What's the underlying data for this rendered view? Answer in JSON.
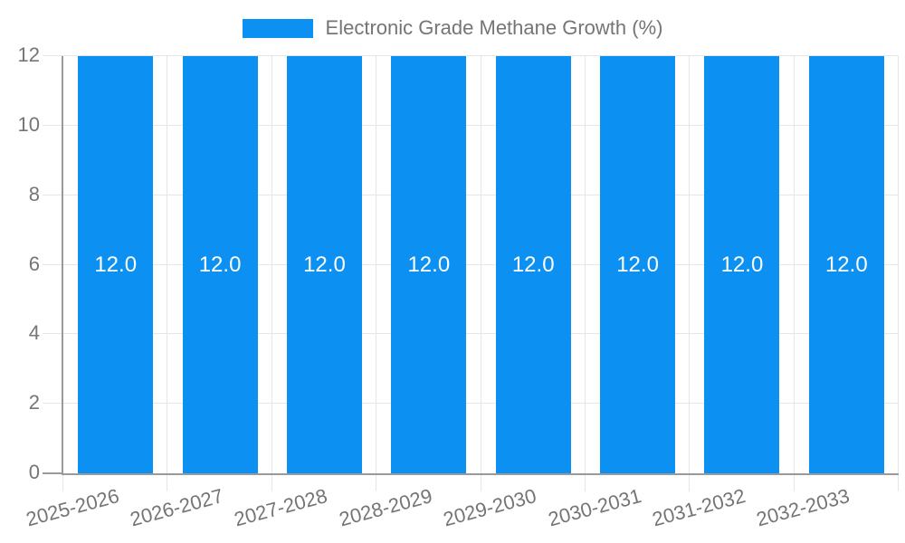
{
  "chart_data": {
    "type": "bar",
    "title": "",
    "legend": {
      "label": "Electronic Grade Methane Growth (%)",
      "position": "top"
    },
    "categories": [
      "2025-2026",
      "2026-2027",
      "2027-2028",
      "2028-2029",
      "2029-2030",
      "2030-2031",
      "2031-2032",
      "2032-2033"
    ],
    "series": [
      {
        "name": "Electronic Grade Methane Growth (%)",
        "values": [
          12.0,
          12.0,
          12.0,
          12.0,
          12.0,
          12.0,
          12.0,
          12.0
        ],
        "value_labels": [
          "12.0",
          "12.0",
          "12.0",
          "12.0",
          "12.0",
          "12.0",
          "12.0",
          "12.0"
        ]
      }
    ],
    "xlabel": "",
    "ylabel": "",
    "ylim": [
      0,
      12
    ],
    "yticks": [
      0,
      2,
      4,
      6,
      8,
      10,
      12
    ],
    "ytick_labels": [
      "0",
      "2",
      "4",
      "6",
      "8",
      "10",
      "12"
    ],
    "grid": true,
    "x_label_rotation_deg": -15,
    "colors": {
      "bar": "#0c90f2",
      "bar_label": "#ffffff",
      "text": "#757575",
      "grid": "#e6e6e6",
      "axis": "#9a9a9a",
      "background": "#ffffff"
    }
  }
}
